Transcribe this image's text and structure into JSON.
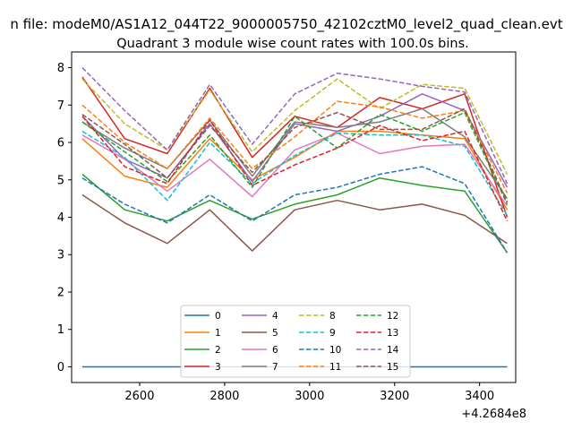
{
  "chart_data": {
    "type": "line",
    "suptitle": "n file: modeM0/AS1A12_044T22_9000005750_42102cztM0_level2_quad_clean.evt",
    "title": "Quadrant 3 module wise count rates with 100.0s bins.",
    "xlabel": "",
    "ylabel": "",
    "x_offset_label": "+4.2684e8",
    "xlim": [
      2440,
      3485
    ],
    "ylim": [
      -0.42,
      8.42
    ],
    "xticks": [
      2600,
      2800,
      3000,
      3200,
      3400
    ],
    "yticks": [
      0,
      1,
      2,
      3,
      4,
      5,
      6,
      7,
      8
    ],
    "legend_position": "lower center",
    "x": [
      2465,
      2565,
      2665,
      2765,
      2865,
      2965,
      3065,
      3165,
      3265,
      3365,
      3465
    ],
    "series": [
      {
        "name": "0",
        "color": "#1f77b4",
        "dash": "solid",
        "values": [
          0,
          0,
          0,
          0,
          0,
          0,
          0,
          0,
          0,
          0,
          0
        ]
      },
      {
        "name": "1",
        "color": "#ff7f0e",
        "dash": "solid",
        "values": [
          6.1,
          5.1,
          4.8,
          6.1,
          5.0,
          5.6,
          6.3,
          6.3,
          6.2,
          6.1,
          4.2
        ]
      },
      {
        "name": "2",
        "color": "#2ca02c",
        "dash": "solid",
        "values": [
          5.15,
          4.2,
          3.9,
          4.45,
          3.95,
          4.35,
          4.6,
          5.05,
          4.85,
          4.7,
          3.05
        ]
      },
      {
        "name": "3",
        "color": "#d62728",
        "dash": "solid",
        "values": [
          7.75,
          6.1,
          5.7,
          7.45,
          5.6,
          6.7,
          6.4,
          7.2,
          6.9,
          7.3,
          4.0
        ]
      },
      {
        "name": "4",
        "color": "#9467bd",
        "dash": "solid",
        "values": [
          6.7,
          5.55,
          5.05,
          6.5,
          4.95,
          6.5,
          6.3,
          6.7,
          7.3,
          6.85,
          4.8
        ]
      },
      {
        "name": "5",
        "color": "#8c564b",
        "dash": "solid",
        "values": [
          4.6,
          3.85,
          3.3,
          4.2,
          3.1,
          4.2,
          4.45,
          4.2,
          4.35,
          4.05,
          3.3
        ]
      },
      {
        "name": "6",
        "color": "#e377c2",
        "dash": "solid",
        "values": [
          6.2,
          5.55,
          4.7,
          5.55,
          4.55,
          5.8,
          6.25,
          5.7,
          5.9,
          5.95,
          4.3
        ]
      },
      {
        "name": "7",
        "color": "#7f7f7f",
        "dash": "solid",
        "values": [
          6.55,
          5.85,
          5.3,
          6.6,
          5.1,
          6.55,
          6.4,
          6.55,
          6.9,
          6.15,
          4.5
        ]
      },
      {
        "name": "8",
        "color": "#bcbd22",
        "dash": "dashed",
        "values": [
          7.7,
          6.5,
          5.8,
          7.4,
          5.75,
          6.85,
          7.7,
          6.9,
          7.55,
          7.45,
          5.15
        ]
      },
      {
        "name": "9",
        "color": "#17becf",
        "dash": "dashed",
        "values": [
          6.3,
          5.6,
          4.45,
          6.0,
          4.9,
          5.65,
          6.25,
          6.2,
          6.2,
          5.9,
          4.05
        ]
      },
      {
        "name": "10",
        "color": "#1f77b4",
        "dash": "dashed",
        "values": [
          5.05,
          4.35,
          3.85,
          4.6,
          3.9,
          4.6,
          4.8,
          5.15,
          5.35,
          4.9,
          3.05
        ]
      },
      {
        "name": "11",
        "color": "#ff7f0e",
        "dash": "dashed",
        "values": [
          7.0,
          6.0,
          5.3,
          6.65,
          5.3,
          6.15,
          7.1,
          6.95,
          6.65,
          6.85,
          4.65
        ]
      },
      {
        "name": "12",
        "color": "#2ca02c",
        "dash": "dashed",
        "values": [
          6.55,
          5.75,
          4.95,
          6.2,
          4.8,
          6.7,
          5.85,
          6.75,
          6.3,
          6.8,
          4.35
        ]
      },
      {
        "name": "13",
        "color": "#d62728",
        "dash": "dashed",
        "values": [
          6.7,
          5.35,
          4.9,
          6.6,
          4.85,
          5.4,
          5.85,
          6.45,
          6.05,
          6.3,
          3.9
        ]
      },
      {
        "name": "14",
        "color": "#9467bd",
        "dash": "dashed",
        "values": [
          8.0,
          6.85,
          5.8,
          7.55,
          5.95,
          7.3,
          7.85,
          7.7,
          7.5,
          7.35,
          4.9
        ]
      },
      {
        "name": "15",
        "color": "#8c564b",
        "dash": "dashed",
        "values": [
          6.75,
          5.95,
          5.05,
          6.45,
          5.2,
          6.4,
          6.8,
          6.35,
          6.35,
          6.9,
          4.4
        ]
      }
    ]
  }
}
